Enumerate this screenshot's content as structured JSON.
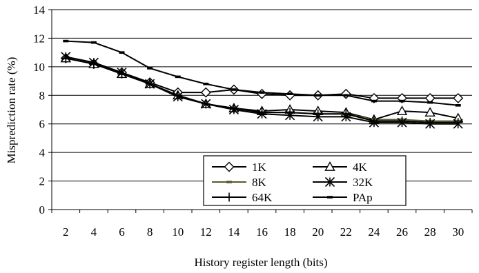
{
  "chart_data": {
    "type": "line",
    "title": "",
    "xlabel": "History register length (bits)",
    "ylabel": "Misprediction rate (%)",
    "ylim": [
      0,
      14
    ],
    "yticks": [
      0,
      2,
      4,
      6,
      8,
      10,
      12,
      14
    ],
    "grid": "horizontal",
    "legend_position": "bottom-center",
    "categories": [
      "2",
      "4",
      "6",
      "8",
      "10",
      "12",
      "14",
      "16",
      "18",
      "20",
      "22",
      "24",
      "26",
      "28",
      "30"
    ],
    "series": [
      {
        "name": "1K",
        "marker": "diamond",
        "color": "#000000",
        "values": [
          10.6,
          10.2,
          9.6,
          8.9,
          8.2,
          8.2,
          8.4,
          8.1,
          8.0,
          8.0,
          8.1,
          7.8,
          7.8,
          7.8,
          7.8
        ]
      },
      {
        "name": "4K",
        "marker": "triangle",
        "color": "#000000",
        "values": [
          10.6,
          10.2,
          9.5,
          8.8,
          8.0,
          7.4,
          7.1,
          6.9,
          7.0,
          6.9,
          6.8,
          6.3,
          6.9,
          6.8,
          6.4
        ]
      },
      {
        "name": "8K",
        "marker": "dash",
        "color": "#5a5a2a",
        "values": [
          10.6,
          10.2,
          9.5,
          8.8,
          8.0,
          7.4,
          7.1,
          6.8,
          6.8,
          6.7,
          6.7,
          6.3,
          6.3,
          6.2,
          6.2
        ]
      },
      {
        "name": "32K",
        "marker": "asterisk",
        "color": "#000000",
        "values": [
          10.7,
          10.3,
          9.6,
          8.8,
          7.9,
          7.4,
          7.0,
          6.7,
          6.6,
          6.5,
          6.5,
          6.1,
          6.1,
          6.0,
          6.0
        ]
      },
      {
        "name": "64K",
        "marker": "plus",
        "color": "#000000",
        "values": [
          10.6,
          10.2,
          9.5,
          8.8,
          8.0,
          7.4,
          7.1,
          6.8,
          6.8,
          6.7,
          6.7,
          6.2,
          6.2,
          6.1,
          6.1
        ]
      },
      {
        "name": "PAp",
        "marker": "dash",
        "color": "#000000",
        "values": [
          11.8,
          11.7,
          11.0,
          9.9,
          9.3,
          8.8,
          8.4,
          8.2,
          8.1,
          8.0,
          8.0,
          7.6,
          7.6,
          7.5,
          7.3
        ]
      }
    ]
  }
}
